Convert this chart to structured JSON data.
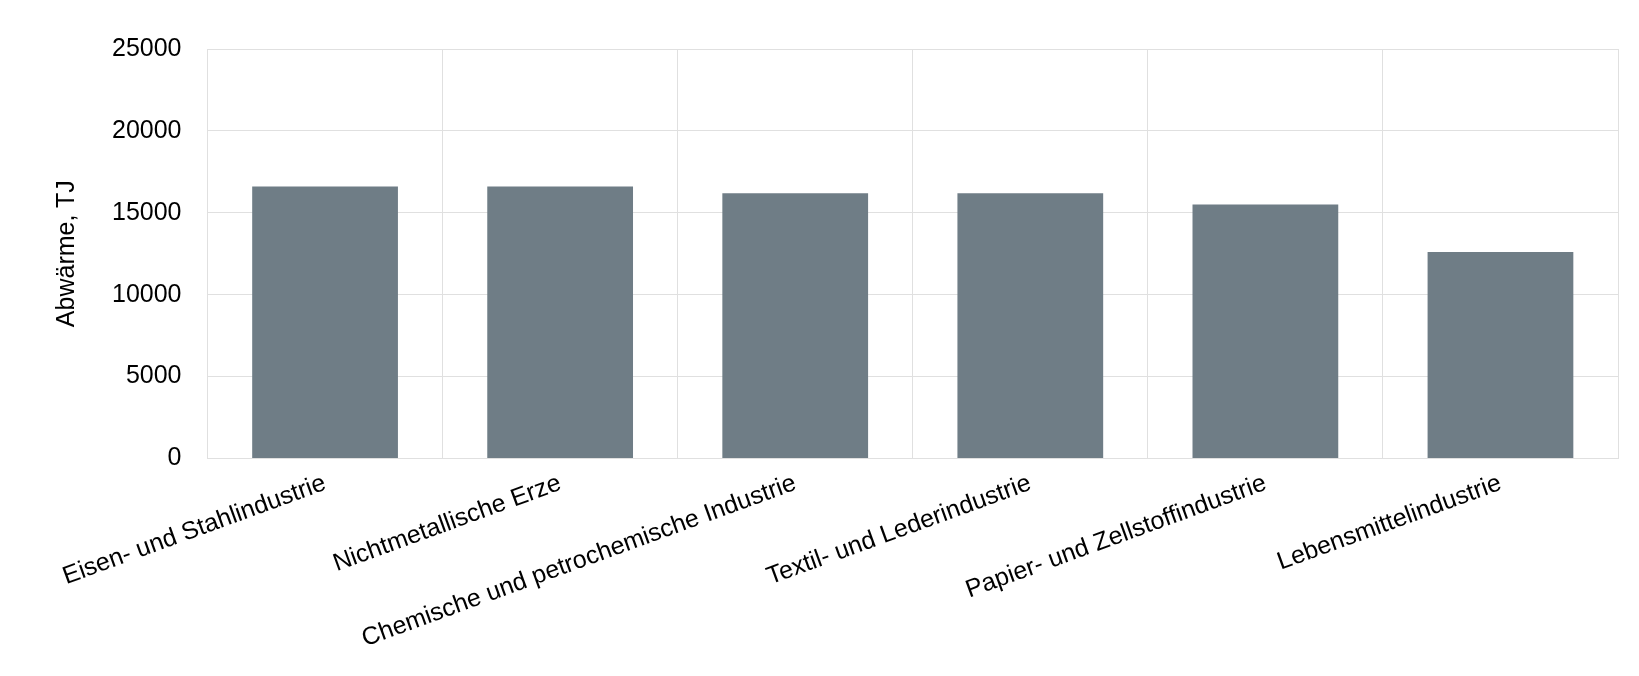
{
  "chart_data": {
    "type": "bar",
    "ylabel": "Abwärme, TJ",
    "categories": [
      "Eisen- und Stahlindustrie",
      "Nichtmetallische Erze",
      "Chemische und petrochemische Industrie",
      "Textil- und Lederindustrie",
      "Papier- und Zellstoffindustrie",
      "Lebensmittelindustrie"
    ],
    "values": [
      16600,
      16600,
      16200,
      16200,
      15500,
      12600
    ],
    "color": "#6f7d86",
    "ylim": [
      0,
      25000
    ],
    "yticks": [
      0,
      5000,
      10000,
      15000,
      20000,
      25000
    ],
    "grid": true,
    "legend": false
  }
}
